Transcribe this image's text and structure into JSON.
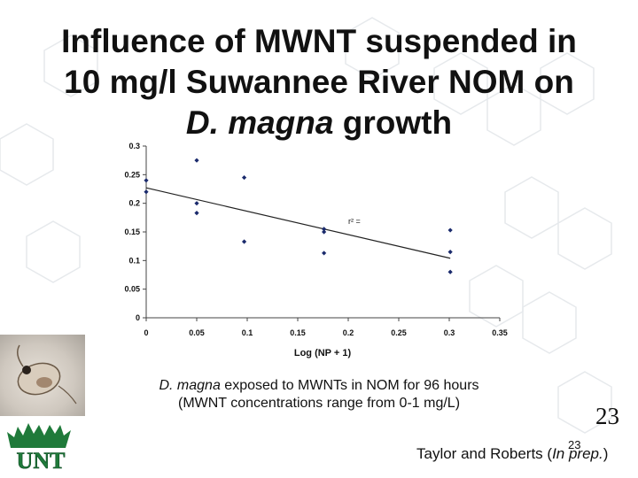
{
  "slide": {
    "title_line1": "Influence of MWNT suspended in",
    "title_line2": "10 mg/l Suwannee River NOM on",
    "title_line3_italic": "D. magna",
    "title_line3_rest": " growth",
    "caption_italic": "D. magna",
    "caption_line1_rest": " exposed to MWNTs in NOM for 96 hours",
    "caption_line2": "(MWNT concentrations range from 0-1 mg/L)",
    "slide_number": "23",
    "credit_prefix": "Taylor and Roberts (",
    "credit_italic": "In prep.",
    "credit_suffix": ")",
    "footer_number": "23",
    "logo_text": "UNT"
  },
  "colors": {
    "marker": "#1a2a6c",
    "trendline": "#222222",
    "logo_green": "#1f7a3a",
    "network_lines": "#e6e9ec"
  },
  "chart_data": {
    "type": "scatter",
    "xlabel": "Log (NP + 1)",
    "ylabel": "",
    "annotation": "r² =",
    "xlim": [
      0,
      0.35
    ],
    "ylim": [
      0,
      0.3
    ],
    "x_ticks": [
      "0",
      "0.05",
      "0.1",
      "0.15",
      "0.2",
      "0.25",
      "0.3",
      "0.35"
    ],
    "y_ticks": [
      "0",
      "0.05",
      "0.1",
      "0.15",
      "0.2",
      "0.25",
      "0.3"
    ],
    "points": [
      {
        "x": 0,
        "y": 0.24
      },
      {
        "x": 0,
        "y": 0.22
      },
      {
        "x": 0.05,
        "y": 0.275
      },
      {
        "x": 0.05,
        "y": 0.2
      },
      {
        "x": 0.05,
        "y": 0.183
      },
      {
        "x": 0.097,
        "y": 0.245
      },
      {
        "x": 0.097,
        "y": 0.133
      },
      {
        "x": 0.176,
        "y": 0.155
      },
      {
        "x": 0.176,
        "y": 0.15
      },
      {
        "x": 0.176,
        "y": 0.113
      },
      {
        "x": 0.301,
        "y": 0.153
      },
      {
        "x": 0.301,
        "y": 0.115
      },
      {
        "x": 0.301,
        "y": 0.08
      }
    ],
    "trendline": {
      "x": [
        0,
        0.301
      ],
      "y": [
        0.227,
        0.104
      ]
    },
    "grid": false,
    "legend": "none"
  }
}
